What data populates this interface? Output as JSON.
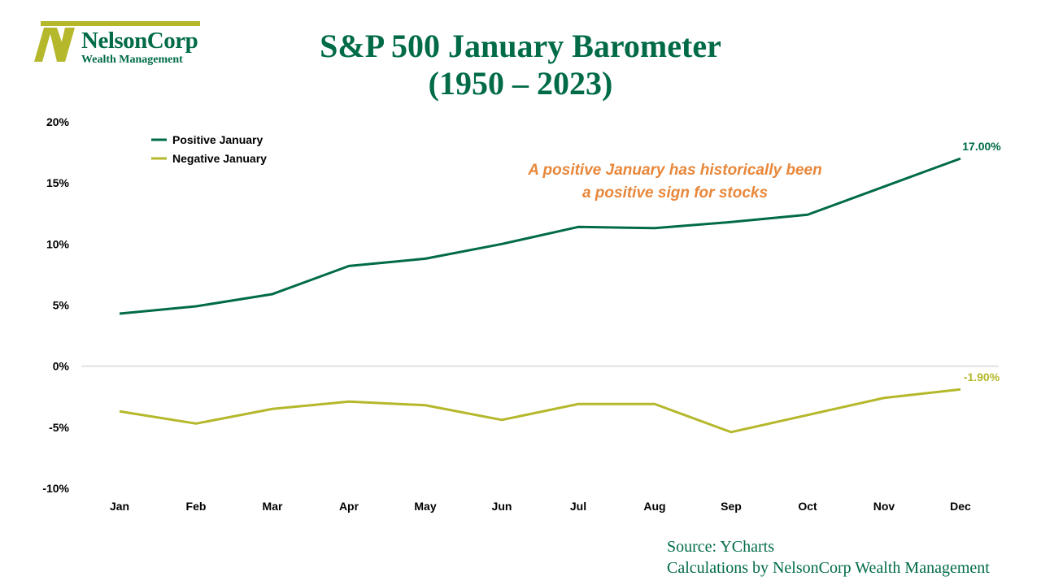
{
  "logo": {
    "name": "NelsonCorp",
    "subtitle": "Wealth Management"
  },
  "colors": {
    "positive": "#006b46",
    "negative": "#b4b82a",
    "annotation": "#e8873a",
    "axis": "#d9d9d9"
  },
  "chart_data": {
    "type": "line",
    "title_line1": "S&P 500 January Barometer",
    "title_line2": "(1950 – 2023)",
    "categories": [
      "Jan",
      "Feb",
      "Mar",
      "Apr",
      "May",
      "Jun",
      "Jul",
      "Aug",
      "Sep",
      "Oct",
      "Nov",
      "Dec"
    ],
    "series": [
      {
        "name": "Positive January",
        "color": "#006b46",
        "values": [
          4.3,
          4.9,
          5.9,
          8.2,
          8.8,
          10.0,
          11.4,
          11.3,
          11.8,
          12.4,
          14.7,
          17.0
        ],
        "end_label": "17.00%"
      },
      {
        "name": "Negative January",
        "color": "#b4b82a",
        "values": [
          -3.7,
          -4.7,
          -3.5,
          -2.9,
          -3.2,
          -4.4,
          -3.1,
          -3.1,
          -5.4,
          -4.0,
          -2.6,
          -1.9
        ],
        "end_label": "-1.90%"
      }
    ],
    "ylim": [
      -10,
      20
    ],
    "yticks": [
      20,
      15,
      10,
      5,
      0,
      -5,
      -10
    ],
    "ytick_labels": [
      "20%",
      "15%",
      "10%",
      "5%",
      "0%",
      "-5%",
      "-10%"
    ],
    "legend": "top-left",
    "grid": false,
    "annotation": [
      "A positive January has historically been",
      "a positive sign for stocks"
    ]
  },
  "source": {
    "line1": "Source: YCharts",
    "line2": "Calculations by NelsonCorp Wealth Management"
  }
}
